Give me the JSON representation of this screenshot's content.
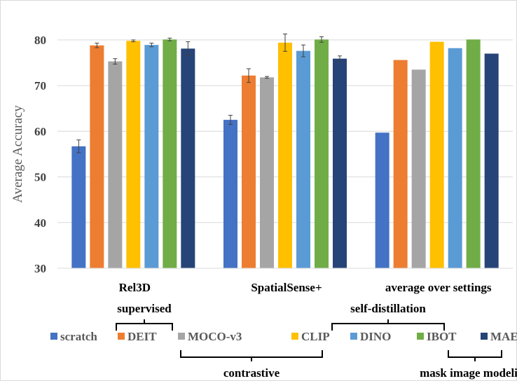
{
  "chart_data": {
    "type": "bar",
    "ylabel": "Average Accuracy",
    "ylim": [
      30,
      83
    ],
    "yticks": [
      30,
      40,
      50,
      60,
      70,
      80
    ],
    "grid": true,
    "categories": [
      "Rel3D",
      "SpatialSense+",
      "average over settings"
    ],
    "series": [
      {
        "name": "scratch",
        "color": "#4472c4",
        "values": [
          56.7,
          62.5,
          59.7
        ],
        "errors": [
          1.4,
          1.0,
          null
        ]
      },
      {
        "name": "DEIT",
        "color": "#ed7d31",
        "values": [
          78.8,
          72.2,
          75.6
        ],
        "errors": [
          0.5,
          1.5,
          null
        ]
      },
      {
        "name": "MOCO-v3",
        "color": "#a5a5a5",
        "values": [
          75.3,
          71.8,
          73.5
        ],
        "errors": [
          0.6,
          0.2,
          null
        ]
      },
      {
        "name": "CLIP",
        "color": "#ffc000",
        "values": [
          79.8,
          79.4,
          79.6
        ],
        "errors": [
          0.2,
          1.9,
          null
        ]
      },
      {
        "name": "DINO",
        "color": "#5b9bd5",
        "values": [
          78.9,
          77.6,
          78.2
        ],
        "errors": [
          0.4,
          1.3,
          null
        ]
      },
      {
        "name": "IBOT",
        "color": "#70ad47",
        "values": [
          80.1,
          80.1,
          80.1
        ],
        "errors": [
          0.3,
          0.6,
          null
        ]
      },
      {
        "name": "MAE",
        "color": "#264478",
        "values": [
          78.1,
          75.9,
          77.0
        ],
        "errors": [
          1.5,
          0.6,
          null
        ]
      }
    ],
    "legend_placement": "bottom",
    "groups": [
      {
        "label": "supervised",
        "members": [
          "DEIT"
        ],
        "bracket": "above"
      },
      {
        "label": "contrastive",
        "members": [
          "MOCO-v3",
          "CLIP"
        ],
        "bracket": "below"
      },
      {
        "label": "self-distillation",
        "members": [
          "DINO",
          "IBOT"
        ],
        "bracket": "above"
      },
      {
        "label": "mask image modeling",
        "members": [
          "MAE"
        ],
        "bracket": "below"
      }
    ]
  }
}
